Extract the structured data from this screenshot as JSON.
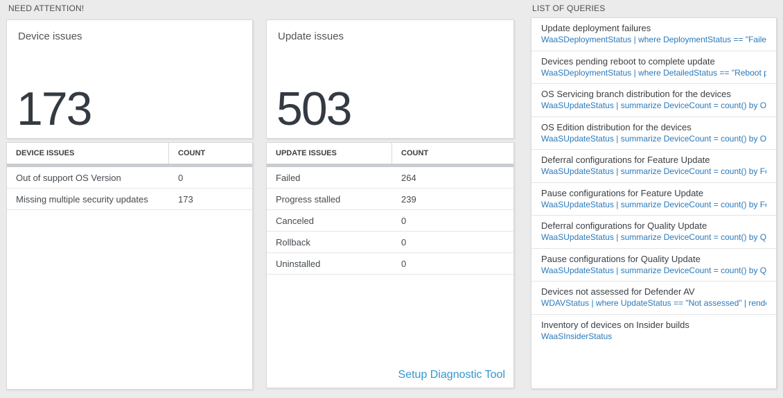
{
  "sections": {
    "need_attention": {
      "title": "NEED ATTENTION!"
    },
    "list_of_queries": {
      "title": "LIST OF QUERIES"
    }
  },
  "device_issues": {
    "tile_label": "Device issues",
    "tile_value": "173",
    "table": {
      "headers": [
        "DEVICE ISSUES",
        "COUNT"
      ],
      "rows": [
        {
          "label": "Out of support OS Version",
          "count": "0"
        },
        {
          "label": "Missing multiple security updates",
          "count": "173"
        }
      ]
    }
  },
  "update_issues": {
    "tile_label": "Update issues",
    "tile_value": "503",
    "table": {
      "headers": [
        "UPDATE ISSUES",
        "COUNT"
      ],
      "rows": [
        {
          "label": "Failed",
          "count": "264"
        },
        {
          "label": "Progress stalled",
          "count": "239"
        },
        {
          "label": "Canceled",
          "count": "0"
        },
        {
          "label": "Rollback",
          "count": "0"
        },
        {
          "label": "Uninstalled",
          "count": "0"
        }
      ]
    },
    "diagnostic_link": "Setup Diagnostic Tool"
  },
  "queries": {
    "items": [
      {
        "title": "Update deployment failures",
        "query": "WaaSDeploymentStatus | where DeploymentStatus == \"Failed\" |..."
      },
      {
        "title": "Devices pending reboot to complete update",
        "query": "WaaSDeploymentStatus | where DetailedStatus == \"Reboot pend..."
      },
      {
        "title": "OS Servicing branch distribution for the devices",
        "query": "WaaSUpdateStatus | summarize DeviceCount = count() by OSSer..."
      },
      {
        "title": "OS Edition distribution for the devices",
        "query": "WaaSUpdateStatus | summarize DeviceCount = count() by OSEdit..."
      },
      {
        "title": "Deferral configurations for Feature Update",
        "query": "WaaSUpdateStatus | summarize DeviceCount = count() by Featur..."
      },
      {
        "title": "Pause configurations for Feature Update",
        "query": "WaaSUpdateStatus | summarize DeviceCount = count() by Featur..."
      },
      {
        "title": "Deferral configurations for Quality Update",
        "query": "WaaSUpdateStatus | summarize DeviceCount = count() by Qualit..."
      },
      {
        "title": "Pause configurations for Quality Update",
        "query": "WaaSUpdateStatus | summarize DeviceCount = count() by Qualit..."
      },
      {
        "title": "Devices not assessed for Defender AV",
        "query": "WDAVStatus | where UpdateStatus == \"Not assessed\" | render ta..."
      },
      {
        "title": "Inventory of devices on Insider builds",
        "query": "WaaSInsiderStatus"
      }
    ]
  },
  "colors": {
    "query_link_blue": "#2a79ba",
    "diagnostic_link_blue": "#2f96d0",
    "big_number": "#333a42",
    "page_background": "#ebebeb"
  }
}
